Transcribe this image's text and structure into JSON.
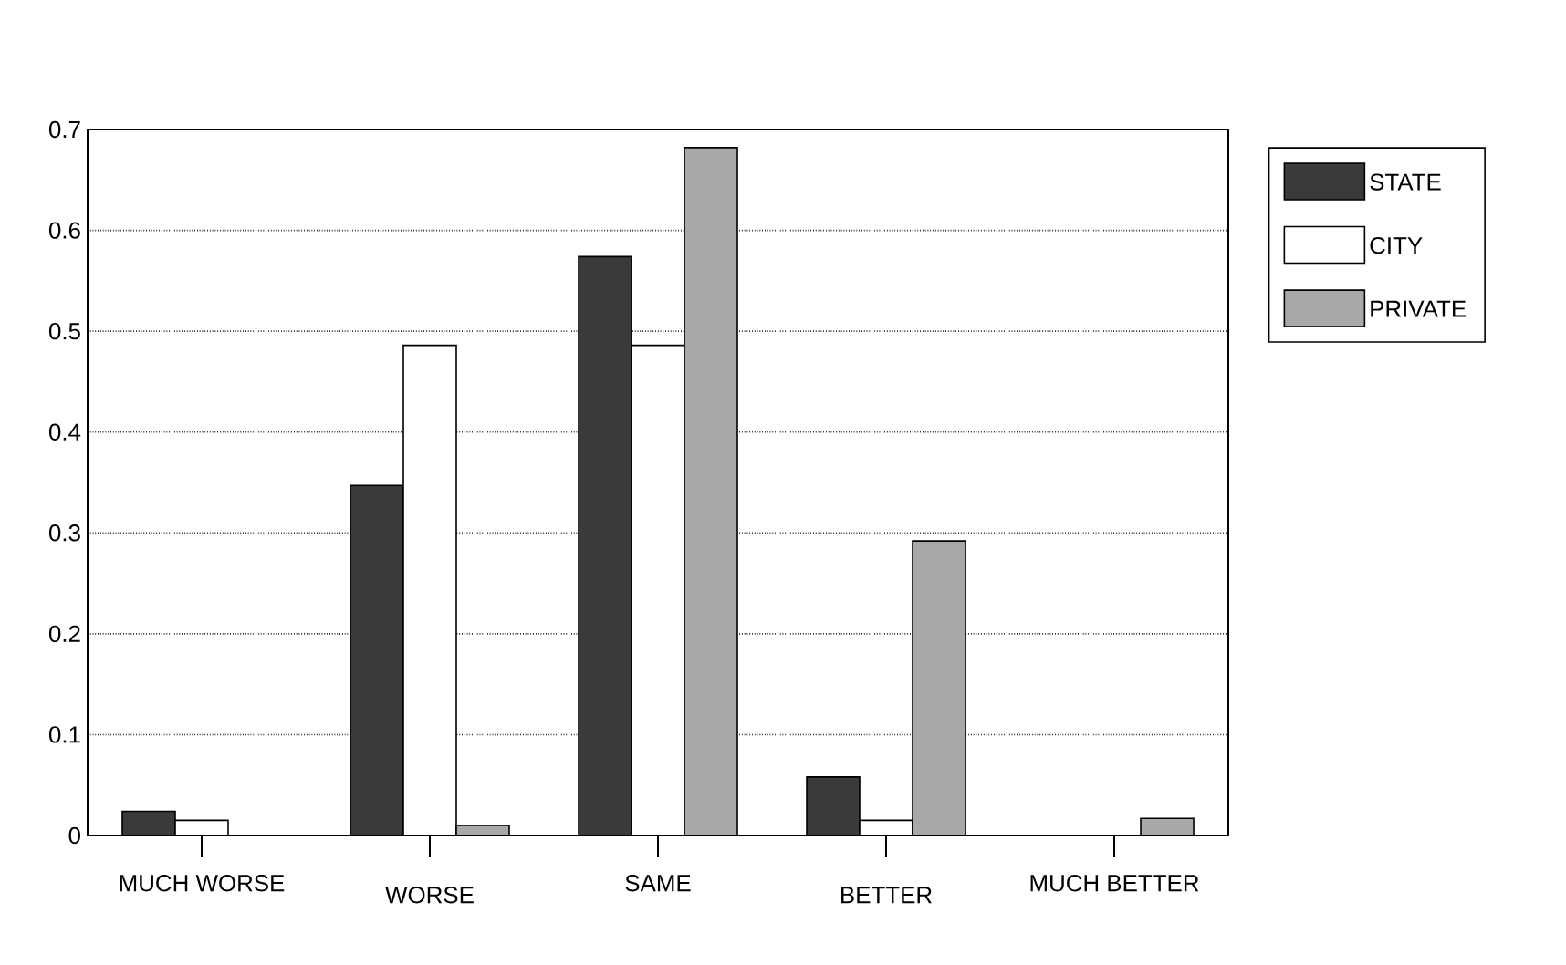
{
  "chart_data": {
    "type": "bar",
    "categories": [
      "MUCH WORSE",
      "WORSE",
      "SAME",
      "BETTER",
      "MUCH BETTER"
    ],
    "series": [
      {
        "name": "STATE",
        "color": "#3a3a3a",
        "values": [
          0.024,
          0.347,
          0.574,
          0.058,
          null
        ]
      },
      {
        "name": "CITY",
        "color": "#ffffff",
        "values": [
          0.015,
          0.486,
          0.486,
          0.015,
          null
        ]
      },
      {
        "name": "PRIVATE",
        "color": "#a8a8a8",
        "values": [
          null,
          0.01,
          0.682,
          0.292,
          0.017
        ]
      }
    ],
    "ylim": [
      0,
      0.7
    ],
    "yticks": [
      0,
      0.1,
      0.2,
      0.3,
      0.4,
      0.5,
      0.6,
      0.7
    ],
    "grid": "y",
    "legend": "top right"
  }
}
